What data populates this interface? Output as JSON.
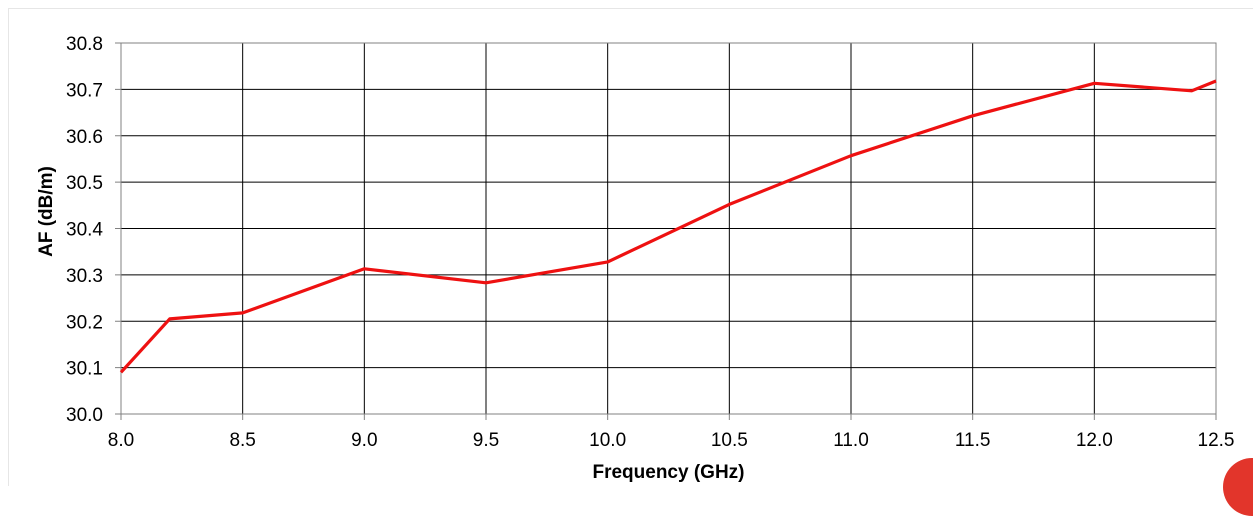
{
  "chart_data": {
    "type": "line",
    "title": "",
    "xlabel": "Frequency (GHz)",
    "ylabel": "AF (dB/m)",
    "xlim": [
      8.0,
      12.5
    ],
    "ylim": [
      30.0,
      30.8
    ],
    "x_ticks": [
      "8.0",
      "8.5",
      "9.0",
      "9.5",
      "10.0",
      "10.5",
      "11.0",
      "11.5",
      "12.0",
      "12.5"
    ],
    "y_ticks": [
      "30.0",
      "30.1",
      "30.2",
      "30.3",
      "30.4",
      "30.5",
      "30.6",
      "30.7",
      "30.8"
    ],
    "grid": true,
    "legend": "none",
    "series": [
      {
        "color": "#ee1111",
        "x": [
          8.0,
          8.2,
          8.5,
          9.0,
          9.5,
          10.0,
          10.5,
          11.0,
          11.5,
          12.0,
          12.4,
          12.5
        ],
        "y": [
          30.09,
          30.205,
          30.218,
          30.313,
          30.283,
          30.328,
          30.452,
          30.557,
          30.643,
          30.713,
          30.697,
          30.718
        ]
      }
    ]
  },
  "decoration": {
    "corner_mark_color": "#e2352b"
  }
}
